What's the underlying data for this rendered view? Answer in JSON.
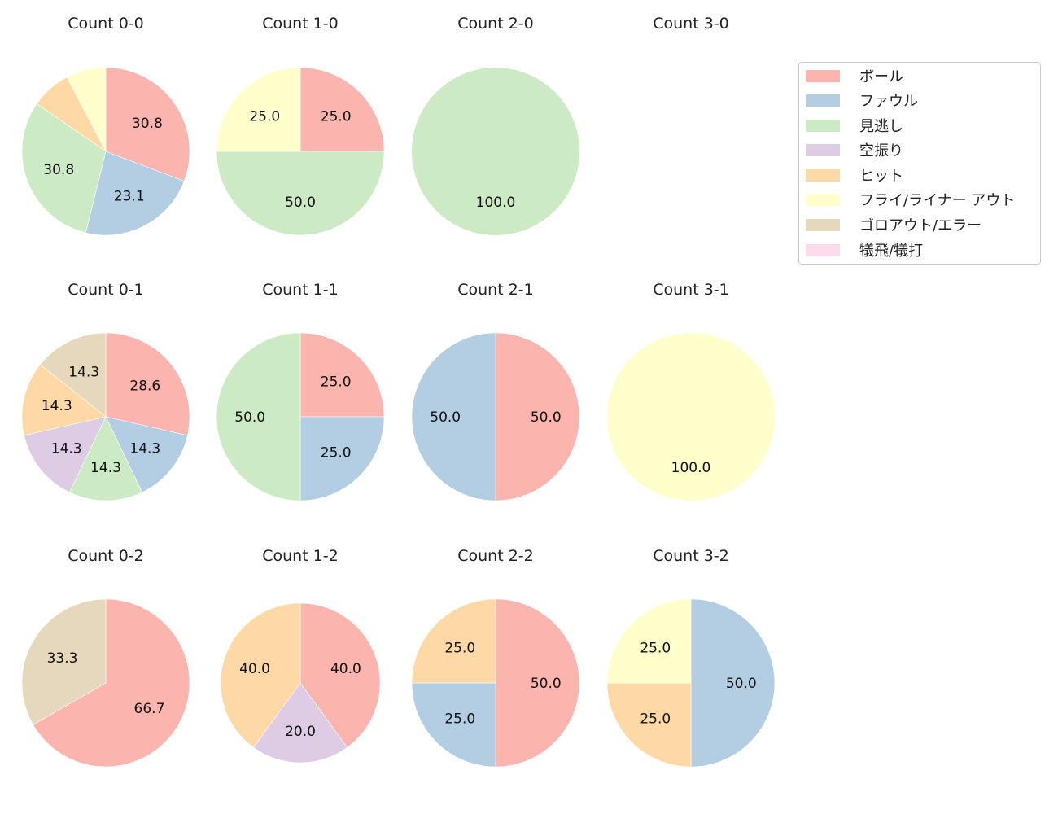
{
  "chart_data": {
    "type": "pie",
    "legend": {
      "position": "upper right",
      "entries": [
        {
          "label": "ボール",
          "color": "#fbb4ae"
        },
        {
          "label": "ファウル",
          "color": "#b3cde3"
        },
        {
          "label": "見逃し",
          "color": "#ccebc5"
        },
        {
          "label": "空振り",
          "color": "#decbe4"
        },
        {
          "label": "ヒット",
          "color": "#fed9a6"
        },
        {
          "label": "フライ/ライナー アウト",
          "color": "#ffffcc"
        },
        {
          "label": "ゴロアウト/エラー",
          "color": "#e5d8bd"
        },
        {
          "label": "犠飛/犠打",
          "color": "#fddaec"
        }
      ]
    },
    "charts": [
      {
        "title": "Count 0-0",
        "col": 0,
        "row": 0,
        "radius": 103,
        "slices": [
          {
            "cat": 0,
            "value": 30.8,
            "label": "30.8"
          },
          {
            "cat": 1,
            "value": 23.1,
            "label": "23.1"
          },
          {
            "cat": 2,
            "value": 30.8,
            "label": "30.8"
          },
          {
            "cat": 4,
            "value": 7.7,
            "label": ""
          },
          {
            "cat": 5,
            "value": 7.7,
            "label": ""
          }
        ]
      },
      {
        "title": "Count 1-0",
        "col": 1,
        "row": 0,
        "radius": 103,
        "slices": [
          {
            "cat": 0,
            "value": 25.0,
            "label": "25.0"
          },
          {
            "cat": 2,
            "value": 50.0,
            "label": "50.0"
          },
          {
            "cat": 5,
            "value": 25.0,
            "label": "25.0"
          }
        ]
      },
      {
        "title": "Count 2-0",
        "col": 2,
        "row": 0,
        "radius": 103,
        "slices": [
          {
            "cat": 2,
            "value": 100.0,
            "label": "100.0"
          }
        ]
      },
      {
        "title": "Count 3-0",
        "col": 3,
        "row": 0,
        "radius": 103,
        "slices": []
      },
      {
        "title": "Count 0-1",
        "col": 0,
        "row": 1,
        "radius": 103,
        "slices": [
          {
            "cat": 0,
            "value": 28.6,
            "label": "28.6"
          },
          {
            "cat": 1,
            "value": 14.3,
            "label": "14.3"
          },
          {
            "cat": 2,
            "value": 14.3,
            "label": "14.3"
          },
          {
            "cat": 3,
            "value": 14.3,
            "label": "14.3"
          },
          {
            "cat": 4,
            "value": 14.3,
            "label": "14.3"
          },
          {
            "cat": 6,
            "value": 14.3,
            "label": "14.3"
          }
        ]
      },
      {
        "title": "Count 1-1",
        "col": 1,
        "row": 1,
        "radius": 103,
        "slices": [
          {
            "cat": 0,
            "value": 25.0,
            "label": "25.0"
          },
          {
            "cat": 1,
            "value": 25.0,
            "label": "25.0"
          },
          {
            "cat": 2,
            "value": 50.0,
            "label": "50.0"
          }
        ]
      },
      {
        "title": "Count 2-1",
        "col": 2,
        "row": 1,
        "radius": 103,
        "slices": [
          {
            "cat": 0,
            "value": 50.0,
            "label": "50.0"
          },
          {
            "cat": 1,
            "value": 50.0,
            "label": "50.0"
          }
        ]
      },
      {
        "title": "Count 3-1",
        "col": 3,
        "row": 1,
        "radius": 103,
        "slices": [
          {
            "cat": 5,
            "value": 100.0,
            "label": "100.0"
          }
        ]
      },
      {
        "title": "Count 0-2",
        "col": 0,
        "row": 2,
        "radius": 103,
        "slices": [
          {
            "cat": 0,
            "value": 66.7,
            "label": "66.7"
          },
          {
            "cat": 6,
            "value": 33.3,
            "label": "33.3"
          }
        ]
      },
      {
        "title": "Count 1-2",
        "col": 1,
        "row": 2,
        "radius": 98,
        "slices": [
          {
            "cat": 0,
            "value": 40.0,
            "label": "40.0"
          },
          {
            "cat": 3,
            "value": 20.0,
            "label": "20.0"
          },
          {
            "cat": 4,
            "value": 40.0,
            "label": "40.0"
          }
        ]
      },
      {
        "title": "Count 2-2",
        "col": 2,
        "row": 2,
        "radius": 103,
        "slices": [
          {
            "cat": 0,
            "value": 50.0,
            "label": "50.0"
          },
          {
            "cat": 1,
            "value": 25.0,
            "label": "25.0"
          },
          {
            "cat": 4,
            "value": 25.0,
            "label": "25.0"
          }
        ]
      },
      {
        "title": "Count 3-2",
        "col": 3,
        "row": 2,
        "radius": 103,
        "slices": [
          {
            "cat": 1,
            "value": 50.0,
            "label": "50.0"
          },
          {
            "cat": 4,
            "value": 25.0,
            "label": "25.0"
          },
          {
            "cat": 5,
            "value": 25.0,
            "label": "25.0"
          }
        ]
      }
    ]
  }
}
